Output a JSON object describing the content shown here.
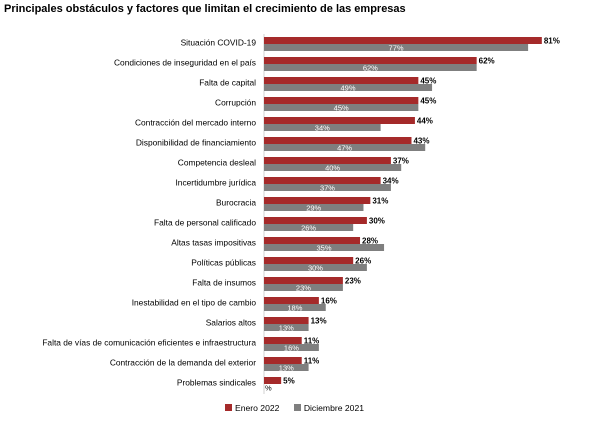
{
  "chart_data": {
    "type": "bar",
    "orientation": "horizontal",
    "title": "Principales obstáculos y factores que limitan el crecimiento de las empresas",
    "categories": [
      "Situación COVID-19",
      "Condiciones de inseguridad en el país",
      "Falta de capital",
      "Corrupción",
      "Contracción del mercado interno",
      "Disponibilidad de financiamiento",
      "Competencia desleal",
      "Incertidumbre jurídica",
      "Burocracia",
      "Falta de personal calificado",
      "Altas tasas impositivas",
      "Políticas públicas",
      "Falta de insumos",
      "Inestabilidad en el tipo de cambio",
      "Salarios altos",
      "Falta de vías de comunicación eficientes e infraestructura",
      "Contracción de la demanda del exterior",
      "Problemas sindicales"
    ],
    "series": [
      {
        "name": "Enero 2022",
        "color": "#A52A2A",
        "values": [
          81,
          62,
          45,
          45,
          44,
          43,
          37,
          34,
          31,
          30,
          28,
          26,
          23,
          16,
          13,
          11,
          11,
          5
        ],
        "labels": [
          "81%",
          "62%",
          "45%",
          "45%",
          "44%",
          "43%",
          "37%",
          "34%",
          "31%",
          "30%",
          "28%",
          "26%",
          "23%",
          "16%",
          "13%",
          "11%",
          "11%",
          "5%"
        ]
      },
      {
        "name": "Diciembre 2021",
        "color": "#7F7F7F",
        "values": [
          77,
          62,
          49,
          45,
          34,
          47,
          40,
          37,
          29,
          26,
          35,
          30,
          23,
          18,
          13,
          16,
          13,
          0
        ],
        "labels": [
          "77%",
          "62%",
          "49%",
          "45%",
          "34%",
          "47%",
          "40%",
          "37%",
          "29%",
          "26%",
          "35%",
          "30%",
          "23%",
          "18%",
          "13%",
          "16%",
          "13%",
          "%"
        ]
      }
    ],
    "value_suffix": "%",
    "xlim": [
      0,
      100
    ],
    "grid": false,
    "legend_position": "bottom"
  }
}
